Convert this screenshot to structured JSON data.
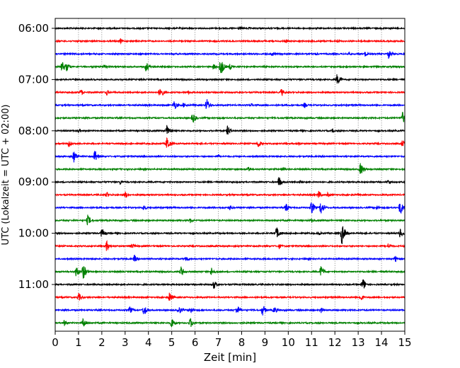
{
  "chart_data": {
    "type": "line",
    "chart_kind": "helicorder",
    "xlabel": "Zeit  [min]",
    "ylabel": "UTC (Lokalzeit = UTC + 02:00)",
    "xlim": [
      0,
      15
    ],
    "x_ticks": [
      "0",
      "1",
      "2",
      "3",
      "4",
      "5",
      "6",
      "7",
      "8",
      "9",
      "10",
      "11",
      "12",
      "13",
      "14",
      "15"
    ],
    "y_ticks": [
      "06:00",
      "07:00",
      "08:00",
      "09:00",
      "10:00",
      "11:00"
    ],
    "grid": "vertical dotted at each minute",
    "colors": [
      "#000000",
      "#ff0000",
      "#0000ff",
      "#008000"
    ],
    "rows": [
      {
        "label": "06:00",
        "color": "#000000",
        "events": [
          [
            7.9,
            3
          ],
          [
            8.3,
            2
          ]
        ]
      },
      {
        "label": "06:15",
        "color": "#ff0000",
        "events": [
          [
            2.8,
            4
          ],
          [
            9.9,
            3
          ],
          [
            12.1,
            3
          ]
        ]
      },
      {
        "label": "06:30",
        "color": "#0000ff",
        "events": [
          [
            9.3,
            4
          ],
          [
            11.2,
            3
          ],
          [
            12.6,
            3
          ],
          [
            13.3,
            4
          ],
          [
            14.3,
            7
          ]
        ]
      },
      {
        "label": "06:45",
        "color": "#008000",
        "events": [
          [
            0.3,
            9
          ],
          [
            0.5,
            7
          ],
          [
            2.1,
            4
          ],
          [
            3.9,
            8
          ],
          [
            6.8,
            5
          ],
          [
            7.1,
            14
          ],
          [
            7.5,
            5
          ]
        ]
      },
      {
        "label": "07:00",
        "color": "#000000",
        "events": [
          [
            12.1,
            9
          ]
        ]
      },
      {
        "label": "07:15",
        "color": "#ff0000",
        "events": [
          [
            1.1,
            5
          ],
          [
            2.2,
            5
          ],
          [
            4.5,
            10
          ],
          [
            5.7,
            3
          ],
          [
            9.7,
            6
          ]
        ]
      },
      {
        "label": "07:30",
        "color": "#0000ff",
        "events": [
          [
            5.1,
            8
          ],
          [
            5.5,
            4
          ],
          [
            6.5,
            10
          ],
          [
            8.4,
            3
          ],
          [
            10.7,
            4
          ]
        ]
      },
      {
        "label": "07:45",
        "color": "#008000",
        "events": [
          [
            5.9,
            9
          ],
          [
            14.9,
            9
          ]
        ]
      },
      {
        "label": "08:00",
        "color": "#000000",
        "events": [
          [
            1.0,
            3
          ],
          [
            4.8,
            10
          ],
          [
            7.4,
            8
          ],
          [
            11.9,
            3
          ]
        ]
      },
      {
        "label": "08:15",
        "color": "#ff0000",
        "events": [
          [
            0.6,
            7
          ],
          [
            4.8,
            11
          ],
          [
            8.7,
            7
          ],
          [
            10.4,
            4
          ],
          [
            14.9,
            6
          ]
        ]
      },
      {
        "label": "08:30",
        "color": "#0000ff",
        "events": [
          [
            0.8,
            9
          ],
          [
            1.7,
            10
          ],
          [
            7.0,
            3
          ]
        ]
      },
      {
        "label": "08:45",
        "color": "#008000",
        "events": [
          [
            8.3,
            5
          ],
          [
            9.8,
            3
          ],
          [
            13.1,
            10
          ]
        ]
      },
      {
        "label": "09:00",
        "color": "#000000",
        "events": [
          [
            2.8,
            4
          ],
          [
            9.6,
            9
          ],
          [
            10.5,
            4
          ],
          [
            14.3,
            4
          ]
        ]
      },
      {
        "label": "09:15",
        "color": "#ff0000",
        "events": [
          [
            2.2,
            5
          ],
          [
            3.0,
            6
          ],
          [
            11.3,
            6
          ],
          [
            11.7,
            4
          ]
        ]
      },
      {
        "label": "09:30",
        "color": "#0000ff",
        "events": [
          [
            3.8,
            5
          ],
          [
            7.5,
            4
          ],
          [
            9.9,
            7
          ],
          [
            11.0,
            10
          ],
          [
            11.4,
            11
          ],
          [
            13.8,
            4
          ],
          [
            14.8,
            11
          ]
        ]
      },
      {
        "label": "09:45",
        "color": "#008000",
        "events": [
          [
            1.4,
            9
          ],
          [
            5.8,
            4
          ],
          [
            11.0,
            3
          ]
        ]
      },
      {
        "label": "10:00",
        "color": "#000000",
        "events": [
          [
            2.0,
            8
          ],
          [
            9.5,
            10
          ],
          [
            11.3,
            4
          ],
          [
            12.3,
            17
          ],
          [
            14.8,
            8
          ]
        ]
      },
      {
        "label": "10:15",
        "color": "#ff0000",
        "events": [
          [
            2.2,
            8
          ],
          [
            3.3,
            5
          ],
          [
            9.6,
            4
          ],
          [
            14.3,
            5
          ]
        ]
      },
      {
        "label": "10:30",
        "color": "#0000ff",
        "events": [
          [
            3.4,
            6
          ],
          [
            5.6,
            5
          ],
          [
            14.6,
            5
          ]
        ]
      },
      {
        "label": "10:45",
        "color": "#008000",
        "events": [
          [
            0.9,
            9
          ],
          [
            1.2,
            12
          ],
          [
            5.4,
            8
          ],
          [
            6.7,
            7
          ],
          [
            11.4,
            9
          ]
        ]
      },
      {
        "label": "11:00",
        "color": "#000000",
        "events": [
          [
            6.8,
            7
          ],
          [
            13.2,
            10
          ]
        ]
      },
      {
        "label": "11:15",
        "color": "#ff0000",
        "events": [
          [
            1.0,
            7
          ],
          [
            4.9,
            8
          ],
          [
            13.1,
            6
          ]
        ]
      },
      {
        "label": "11:30",
        "color": "#0000ff",
        "events": [
          [
            3.2,
            6
          ],
          [
            3.8,
            9
          ],
          [
            5.3,
            7
          ],
          [
            5.8,
            6
          ],
          [
            7.8,
            8
          ],
          [
            8.9,
            9
          ],
          [
            9.4,
            6
          ],
          [
            11.4,
            5
          ]
        ]
      },
      {
        "label": "11:45",
        "color": "#008000",
        "events": [
          [
            0.4,
            5
          ],
          [
            1.2,
            8
          ],
          [
            5.0,
            9
          ],
          [
            5.8,
            8
          ]
        ]
      }
    ]
  }
}
